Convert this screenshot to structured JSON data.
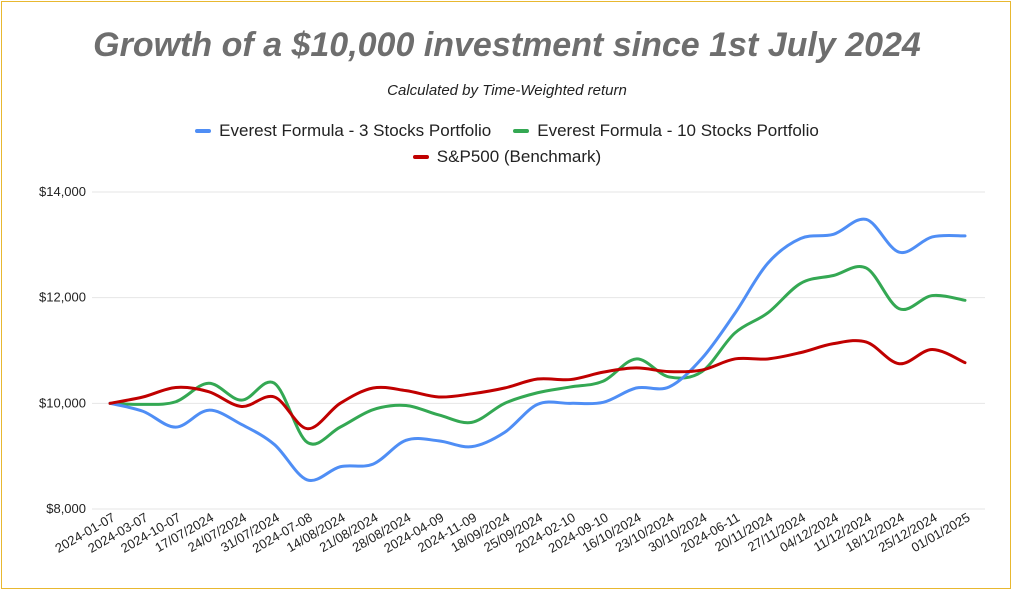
{
  "chart_data": {
    "type": "line",
    "title": "Growth of a $10,000 investment since 1st July 2024",
    "subtitle": "Calculated by Time-Weighted return",
    "categories": [
      "2024-01-07",
      "2024-03-07",
      "2024-10-07",
      "17/07/2024",
      "24/07/2024",
      "31/07/2024",
      "2024-07-08",
      "14/08/2024",
      "21/08/2024",
      "28/08/2024",
      "2024-04-09",
      "2024-11-09",
      "18/09/2024",
      "25/09/2024",
      "2024-02-10",
      "2024-09-10",
      "16/10/2024",
      "23/10/2024",
      "30/10/2024",
      "2024-06-11",
      "20/11/2024",
      "27/11/2024",
      "04/12/2024",
      "11/12/2024",
      "18/12/2024",
      "25/12/2024",
      "01/01/2025"
    ],
    "series": [
      {
        "name": "Everest Formula - 3 Stocks Portfolio",
        "color": "#4f8ef5",
        "values": [
          10000,
          9850,
          9550,
          9870,
          9600,
          9220,
          8550,
          8800,
          8850,
          9300,
          9290,
          9180,
          9450,
          9980,
          10000,
          10020,
          10290,
          10310,
          10850,
          11700,
          12650,
          13120,
          13200,
          13480,
          12860,
          13150,
          13170
        ]
      },
      {
        "name": "Everest Formula - 10 Stocks Portfolio",
        "color": "#34a853",
        "values": [
          10000,
          9980,
          10030,
          10380,
          10060,
          10380,
          9260,
          9550,
          9880,
          9960,
          9780,
          9640,
          10000,
          10200,
          10310,
          10420,
          10840,
          10500,
          10600,
          11330,
          11710,
          12270,
          12420,
          12560,
          11790,
          12040,
          11950
        ]
      },
      {
        "name": "S&P500 (Benchmark)",
        "color": "#c00000",
        "values": [
          10000,
          10120,
          10300,
          10220,
          9940,
          10120,
          9520,
          10000,
          10290,
          10240,
          10120,
          10180,
          10290,
          10460,
          10450,
          10590,
          10670,
          10600,
          10630,
          10840,
          10840,
          10960,
          11130,
          11160,
          10750,
          11020,
          10770
        ]
      }
    ],
    "y_ticks": [
      "$8,000",
      "$10,000",
      "$12,000",
      "$14,000"
    ],
    "y_tick_values": [
      8000,
      10000,
      12000,
      14000
    ],
    "ylim": [
      8000,
      14000
    ],
    "grid": true,
    "legend_position": "top"
  }
}
